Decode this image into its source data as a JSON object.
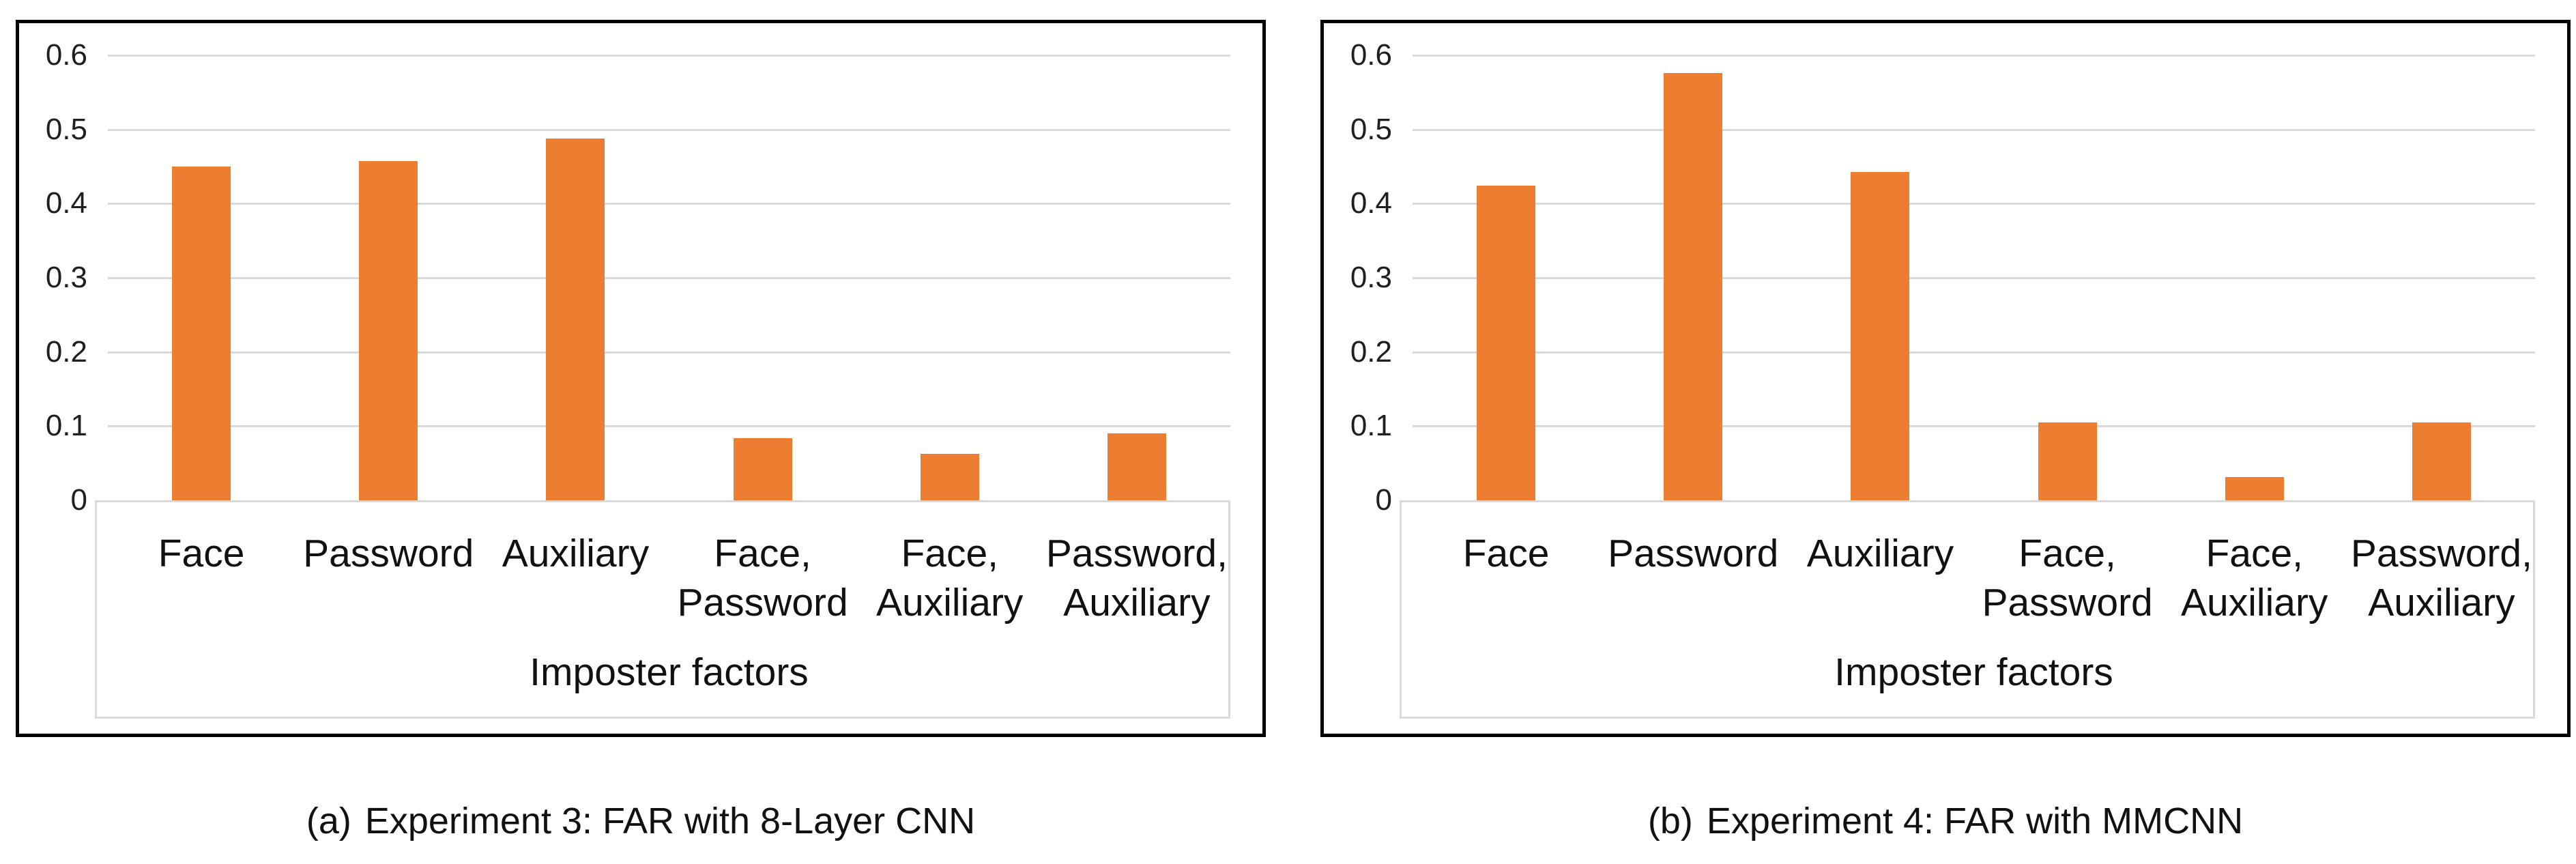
{
  "page": {
    "background": "#ffffff"
  },
  "colors": {
    "bar": "#ED7D31",
    "gridline": "#d9d9d9",
    "axis_box_border": "#d9d9d9",
    "panel_border": "#000000",
    "text": "#111111"
  },
  "chart_data": [
    {
      "type": "bar",
      "panel": "a",
      "caption_prefix": "(a)",
      "caption_text": "Experiment 3: FAR with 8-Layer CNN",
      "title": "",
      "xlabel": "Imposter factors",
      "ylabel": "",
      "categories": [
        "Face",
        "Password",
        "Auxiliary",
        "Face,\nPassword",
        "Face,\nAuxiliary",
        "Password,\nAuxiliary"
      ],
      "values": [
        0.45,
        0.457,
        0.488,
        0.084,
        0.063,
        0.09
      ],
      "ylim": [
        0,
        0.6
      ],
      "yticks": [
        0,
        0.1,
        0.2,
        0.3,
        0.4,
        0.5,
        0.6
      ],
      "ytick_labels": [
        "0",
        "0.1",
        "0.2",
        "0.3",
        "0.4",
        "0.5",
        "0.6"
      ],
      "grid": true,
      "legend": "none",
      "bar_color": "#ED7D31"
    },
    {
      "type": "bar",
      "panel": "b",
      "caption_prefix": "(b)",
      "caption_text": "Experiment 4: FAR with MMCNN",
      "title": "",
      "xlabel": "Imposter factors",
      "ylabel": "",
      "categories": [
        "Face",
        "Password",
        "Auxiliary",
        "Face,\nPassword",
        "Face,\nAuxiliary",
        "Password,\nAuxiliary"
      ],
      "values": [
        0.424,
        0.576,
        0.443,
        0.105,
        0.031,
        0.105
      ],
      "ylim": [
        0,
        0.6
      ],
      "yticks": [
        0,
        0.1,
        0.2,
        0.3,
        0.4,
        0.5,
        0.6
      ],
      "ytick_labels": [
        "0",
        "0.1",
        "0.2",
        "0.3",
        "0.4",
        "0.5",
        "0.6"
      ],
      "grid": true,
      "legend": "none",
      "bar_color": "#ED7D31"
    }
  ]
}
